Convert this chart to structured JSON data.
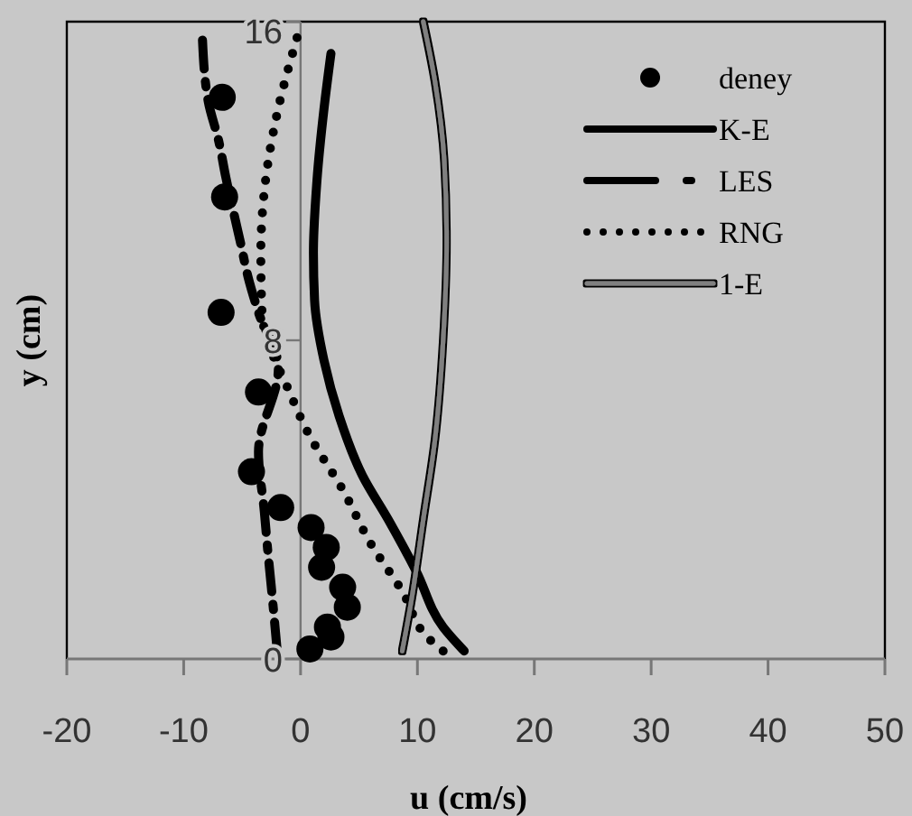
{
  "chart_data": {
    "type": "line",
    "xlabel": "u (cm/s)",
    "ylabel": "y (cm)",
    "xlim": [
      -20,
      50
    ],
    "xticks": [
      -20,
      -10,
      0,
      10,
      20,
      30,
      40,
      50
    ],
    "ylim": [
      0,
      16
    ],
    "yticks": [
      0,
      8,
      16
    ],
    "grid": false,
    "legend": "top right",
    "series": [
      {
        "name": "deney",
        "type": "scatter",
        "marker": "circle",
        "color": "#000000",
        "x": [
          -6.7,
          -6.5,
          -6.8,
          -3.6,
          -4.2,
          -1.7,
          0.9,
          2.2,
          1.8,
          3.6,
          4.0,
          2.3,
          2.6,
          0.8
        ],
        "values": [
          14.1,
          11.6,
          8.7,
          6.7,
          4.7,
          3.8,
          3.3,
          2.8,
          2.3,
          1.8,
          1.3,
          0.8,
          0.55,
          0.25
        ]
      },
      {
        "name": "K-E",
        "line_style": "solid",
        "color": "#000000",
        "x": [
          14,
          12.2,
          9.9,
          7.5,
          5.3,
          3.3,
          2,
          1.2,
          1.1,
          1.4,
          2,
          2.6
        ],
        "values": [
          0.2,
          0.8,
          2.2,
          3.5,
          4.6,
          6.1,
          7.5,
          9,
          10.2,
          12,
          13.8,
          15.2
        ]
      },
      {
        "name": "LES",
        "line_style": "dashed",
        "color": "#000000",
        "x": [
          -2,
          -2.5,
          -2.8,
          -3.1,
          -3.6,
          -1.9,
          -3.6,
          -4.5,
          -5.1,
          -6.4,
          -7,
          -7.9,
          -8.4
        ],
        "values": [
          0.2,
          1.8,
          2.7,
          3.7,
          5.2,
          7.3,
          8.7,
          9.6,
          10.4,
          12.1,
          13,
          14,
          15.6
        ]
      },
      {
        "name": "RNG",
        "line_style": "dotted",
        "color": "#000000",
        "x": [
          12.2,
          11,
          8.7,
          6,
          3.7,
          0.6,
          -0.8,
          -3.3,
          -3.4,
          -3,
          -2,
          -0.3
        ],
        "values": [
          0.2,
          0.5,
          1.7,
          2.9,
          4.2,
          5.7,
          6.6,
          8.7,
          10.2,
          12,
          13.7,
          15.6
        ]
      },
      {
        "name": "1-E",
        "line_style": "solid",
        "color": "#808080",
        "x": [
          8.7,
          9.5,
          10.5,
          11.5,
          12.2,
          12.5,
          12.3,
          11.5,
          10.5
        ],
        "values": [
          0.2,
          1.5,
          3.5,
          5.5,
          8,
          10.5,
          12.5,
          14.5,
          16
        ]
      }
    ]
  }
}
